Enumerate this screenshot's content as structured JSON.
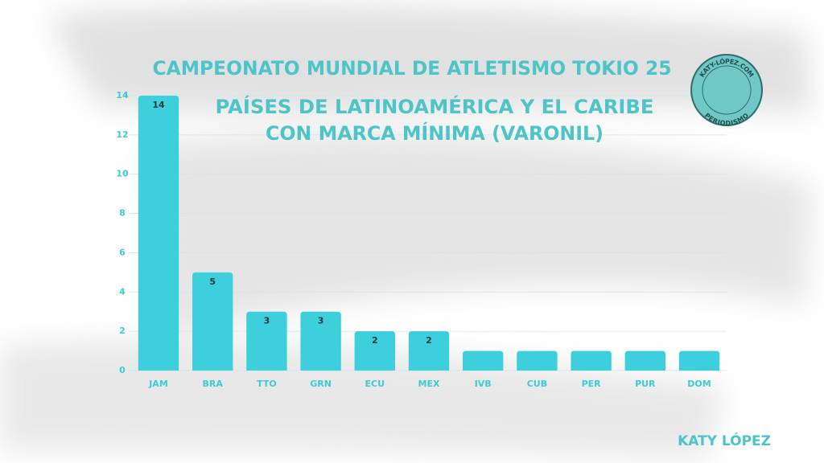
{
  "chart_data": {
    "type": "bar",
    "title": "CAMPEONATO MUNDIAL DE ATLETISMO TOKIO 25",
    "subtitle": [
      "PAÍSES DE LATINOAMÉRICA Y EL CARIBE",
      "CON MARCA MÍNIMA (VARONIL)"
    ],
    "categories": [
      "JAM",
      "BRA",
      "TTO",
      "GRN",
      "ECU",
      "MEX",
      "IVB",
      "CUB",
      "PER",
      "PUR",
      "DOM"
    ],
    "values": [
      14,
      5,
      3,
      3,
      2,
      2,
      1,
      1,
      1,
      1,
      1
    ],
    "value_labels": [
      "14",
      "5",
      "3",
      "3",
      "2",
      "2",
      null,
      null,
      null,
      null,
      null
    ],
    "color": "#3dd0dc",
    "ylim": [
      0,
      14
    ],
    "yticks": [
      0,
      2,
      4,
      6,
      8,
      10,
      12,
      14
    ],
    "grid": true
  },
  "logo": {
    "top": "KATY-LÓPEZ.COM",
    "bottom": "PERIODISMO"
  },
  "signature": "KATY LÓPEZ"
}
